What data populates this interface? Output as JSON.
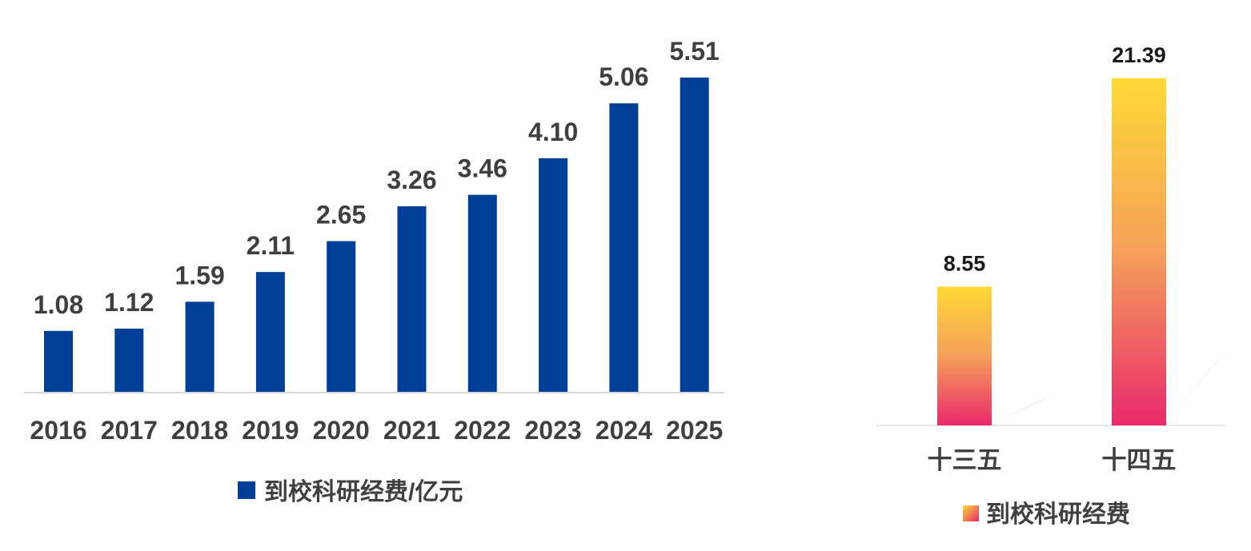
{
  "chart_data": [
    {
      "type": "bar",
      "categories": [
        "2016",
        "2017",
        "2018",
        "2019",
        "2020",
        "2021",
        "2022",
        "2023",
        "2024",
        "2025"
      ],
      "series": [
        {
          "name": "到校科研经费/亿元",
          "values": [
            1.08,
            1.12,
            1.59,
            2.11,
            2.65,
            3.26,
            3.46,
            4.1,
            5.06,
            5.51
          ]
        }
      ],
      "value_labels": [
        "1.08",
        "1.12",
        "1.59",
        "2.11",
        "2.65",
        "3.26",
        "3.46",
        "4.10",
        "5.06",
        "5.51"
      ],
      "color": "#003f98",
      "ylim": [
        0,
        6
      ],
      "grid": false,
      "legend_position": "bottom-center"
    },
    {
      "type": "bar",
      "categories": [
        "十三五",
        "十四五"
      ],
      "series": [
        {
          "name": "到校科研经费",
          "values": [
            8.55,
            21.39
          ]
        }
      ],
      "value_labels": [
        "8.55",
        "21.39"
      ],
      "colors": [
        "#fdd835",
        "#e9296b"
      ],
      "ylim": [
        0,
        23
      ],
      "grid": false,
      "legend_position": "bottom-center"
    }
  ]
}
